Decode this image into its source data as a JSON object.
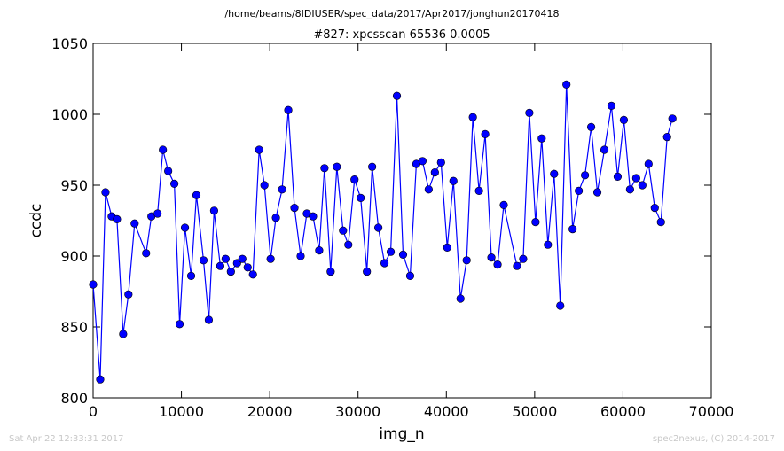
{
  "chart_data": {
    "type": "line",
    "suptitle": "/home/beams/8IDIUSER/spec_data/2017/Apr2017/jonghun20170418",
    "title": "#827: xpcsscan 65536 0.0005",
    "x_label": "img_n",
    "y_label": "ccdc",
    "color": "#0000ff",
    "markers": true,
    "x": [
      0,
      800,
      1400,
      2100,
      2700,
      3400,
      4000,
      4700,
      6000,
      6600,
      7300,
      7900,
      8500,
      9200,
      9800,
      10400,
      11100,
      11700,
      12500,
      13100,
      13700,
      14400,
      15000,
      15600,
      16300,
      16900,
      17500,
      18100,
      18800,
      19400,
      20100,
      20700,
      21400,
      22100,
      22800,
      23500,
      24200,
      24900,
      25600,
      26200,
      26900,
      27600,
      28300,
      28900,
      29600,
      30300,
      31000,
      31600,
      32300,
      33000,
      33700,
      34400,
      35100,
      35900,
      36600,
      37300,
      38000,
      38700,
      39400,
      40100,
      40800,
      41600,
      42300,
      43000,
      43700,
      44400,
      45100,
      45800,
      46500,
      48000,
      48700,
      49400,
      50100,
      50800,
      51500,
      52200,
      52900,
      53600,
      54300,
      55000,
      55700,
      56400,
      57100,
      57900,
      58700,
      59400,
      60100,
      60800,
      61500,
      62200,
      62900,
      63600,
      64300,
      65000,
      65600
    ],
    "values": [
      880,
      813,
      945,
      928,
      926,
      845,
      873,
      923,
      902,
      928,
      930,
      975,
      960,
      951,
      852,
      920,
      886,
      943,
      897,
      855,
      932,
      893,
      898,
      889,
      895,
      898,
      892,
      887,
      975,
      950,
      898,
      927,
      947,
      1003,
      934,
      900,
      930,
      928,
      904,
      962,
      889,
      963,
      918,
      908,
      954,
      941,
      889,
      963,
      920,
      895,
      903,
      1013,
      901,
      886,
      965,
      967,
      947,
      959,
      966,
      906,
      953,
      870,
      897,
      998,
      946,
      986,
      899,
      894,
      936,
      893,
      898,
      1001,
      924,
      983,
      908,
      958,
      865,
      1021,
      919,
      946,
      957,
      991,
      945,
      975,
      1006,
      956,
      996,
      947,
      955,
      950,
      965,
      934,
      924,
      984,
      997
    ],
    "xlim": [
      0,
      70000
    ],
    "ylim": [
      800,
      1050
    ],
    "xticks": [
      0,
      10000,
      20000,
      30000,
      40000,
      50000,
      60000,
      70000
    ],
    "yticks": [
      800,
      850,
      900,
      950,
      1000,
      1050
    ]
  },
  "footer": {
    "timestamp": "Sat Apr 22 12:33:31 2017",
    "credit": "spec2nexus, (C) 2014-2017"
  }
}
